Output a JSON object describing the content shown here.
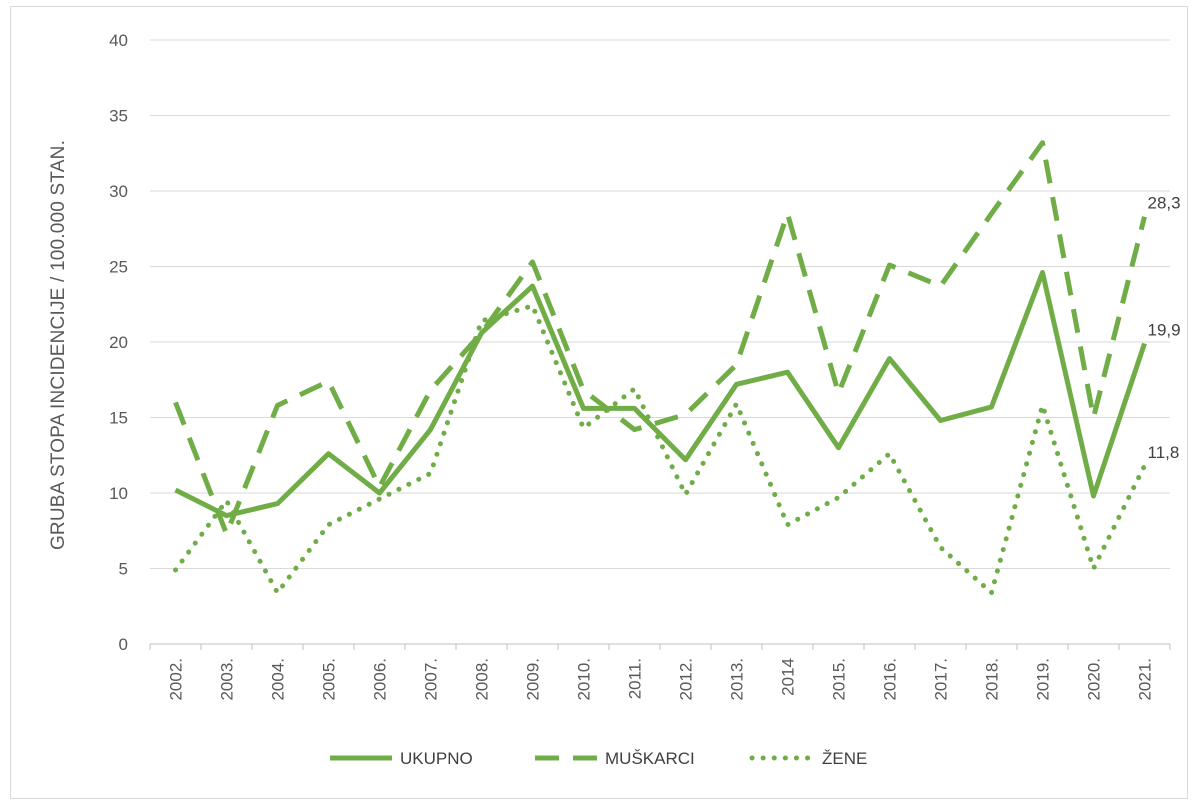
{
  "chart_data": {
    "type": "line",
    "title": "",
    "xlabel": "",
    "ylabel": "GRUBA STOPA INCIDENCIJE / 100.000 STAN.",
    "ylim": [
      0,
      40
    ],
    "yticks": [
      "0",
      "5",
      "10",
      "15",
      "20",
      "25",
      "30",
      "35",
      "40"
    ],
    "grid": "horizontal",
    "legend_position": "bottom",
    "categories": [
      "2002.",
      "2003.",
      "2004.",
      "2005.",
      "2006.",
      "2007.",
      "2008.",
      "2009.",
      "2010.",
      "2011.",
      "2012.",
      "2013.",
      "2014",
      "2015.",
      "2016.",
      "2017.",
      "2018.",
      "2019.",
      "2020.",
      "2021."
    ],
    "series": [
      {
        "name": "UKUPNO",
        "style": "solid",
        "color": "#70ad47",
        "values": [
          10.2,
          8.5,
          9.3,
          12.6,
          10.0,
          14.2,
          20.6,
          23.7,
          15.6,
          15.6,
          12.2,
          17.2,
          18.0,
          13.0,
          18.9,
          14.8,
          15.7,
          24.6,
          9.8,
          19.9
        ],
        "end_label": "19,9"
      },
      {
        "name": "MUŠKARCI",
        "style": "dashed",
        "color": "#70ad47",
        "values": [
          16.0,
          7.3,
          15.8,
          17.4,
          10.4,
          16.8,
          20.6,
          25.3,
          16.8,
          14.2,
          15.2,
          18.5,
          28.5,
          16.6,
          25.1,
          23.7,
          28.5,
          33.2,
          15.0,
          28.3
        ],
        "end_label": "28,3"
      },
      {
        "name": "ŽENE",
        "style": "dotted",
        "color": "#70ad47",
        "values": [
          4.9,
          9.5,
          3.4,
          7.9,
          9.6,
          11.3,
          21.4,
          22.4,
          14.3,
          16.9,
          9.9,
          15.9,
          7.9,
          9.7,
          12.6,
          6.4,
          3.4,
          15.8,
          5.0,
          11.8
        ],
        "end_label": "11,8"
      }
    ]
  }
}
